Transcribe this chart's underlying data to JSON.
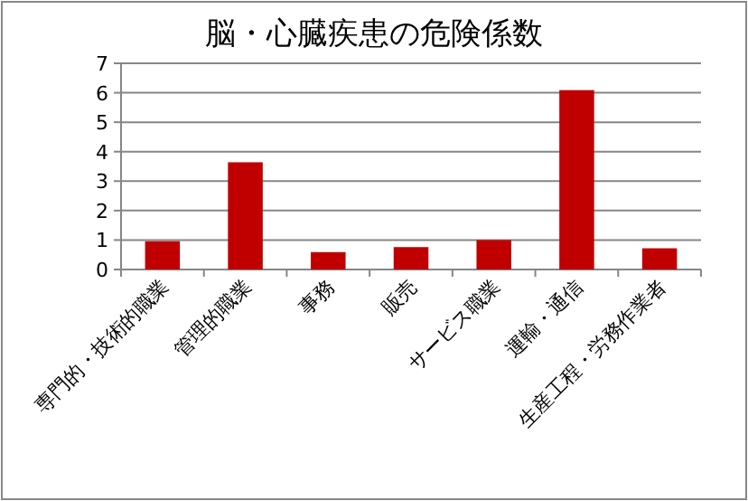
{
  "chart_data": {
    "type": "bar",
    "title": "脳・心臓疾患の危険係数",
    "categories": [
      "専門的・技術的職業",
      "管理的職業",
      "事務",
      "販売",
      "サービス職業",
      "運輸・通信",
      "生産工程・労務作業者"
    ],
    "values": [
      0.96,
      3.64,
      0.59,
      0.76,
      1.0,
      6.09,
      0.72
    ],
    "color": "#c00000",
    "ylim": [
      0,
      7
    ],
    "yticks": [
      0,
      1,
      2,
      3,
      4,
      5,
      6,
      7
    ],
    "grid": "y"
  }
}
